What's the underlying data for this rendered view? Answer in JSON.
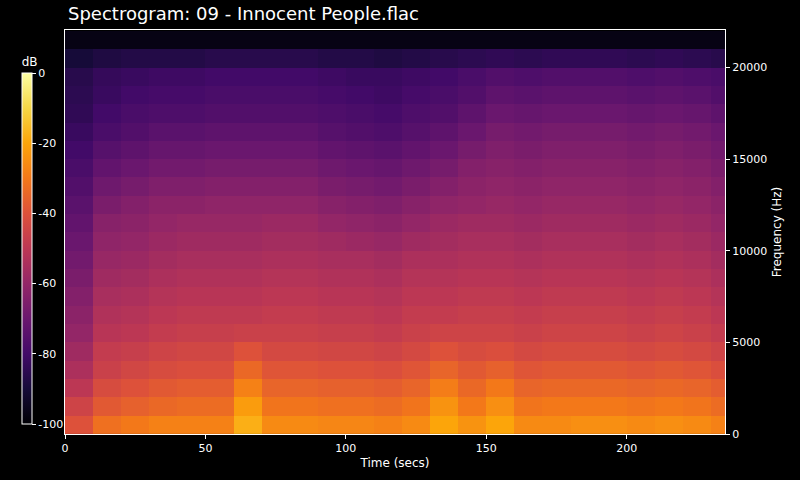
{
  "chart_data": {
    "type": "heatmap",
    "title": "Spectrogram: 09 - Innocent People.flac",
    "x_label": "Time (secs)",
    "y_label": "Frequency (Hz)",
    "z_label": "dB",
    "x": [
      5,
      15,
      25,
      35,
      45,
      55,
      65,
      75,
      85,
      95,
      105,
      115,
      125,
      135,
      145,
      155,
      165,
      175,
      185,
      195,
      205,
      215,
      225,
      235
    ],
    "y": [
      500,
      1500,
      2500,
      3500,
      4500,
      5500,
      6500,
      7500,
      8500,
      9500,
      10500,
      11500,
      12500,
      13500,
      14500,
      15500,
      16500,
      17500,
      18500,
      19500,
      20500,
      21500
    ],
    "z": [
      [
        -40,
        -32,
        -30,
        -28,
        -28,
        -28,
        -18,
        -26,
        -26,
        -27,
        -27,
        -28,
        -26,
        -20,
        -24,
        -20,
        -26,
        -26,
        -25,
        -25,
        -26,
        -25,
        -26,
        -28
      ],
      [
        -45,
        -38,
        -36,
        -34,
        -33,
        -33,
        -22,
        -31,
        -31,
        -32,
        -32,
        -33,
        -31,
        -24,
        -30,
        -25,
        -31,
        -30,
        -30,
        -30,
        -31,
        -30,
        -31,
        -33
      ],
      [
        -50,
        -42,
        -40,
        -38,
        -37,
        -37,
        -28,
        -35,
        -35,
        -36,
        -36,
        -37,
        -35,
        -29,
        -34,
        -30,
        -35,
        -34,
        -34,
        -34,
        -35,
        -34,
        -35,
        -37
      ],
      [
        -54,
        -46,
        -44,
        -42,
        -41,
        -41,
        -34,
        -39,
        -39,
        -40,
        -40,
        -41,
        -39,
        -35,
        -38,
        -36,
        -39,
        -38,
        -38,
        -38,
        -39,
        -38,
        -39,
        -41
      ],
      [
        -57,
        -48,
        -47,
        -45,
        -44,
        -44,
        -40,
        -43,
        -43,
        -44,
        -44,
        -45,
        -43,
        -40,
        -42,
        -41,
        -43,
        -42,
        -42,
        -42,
        -43,
        -42,
        -43,
        -45
      ],
      [
        -60,
        -51,
        -50,
        -48,
        -47,
        -47,
        -46,
        -46,
        -46,
        -47,
        -47,
        -48,
        -46,
        -45,
        -45,
        -45,
        -46,
        -45,
        -45,
        -45,
        -46,
        -45,
        -46,
        -48
      ],
      [
        -62,
        -53,
        -52,
        -50,
        -49,
        -49,
        -49,
        -48,
        -48,
        -49,
        -49,
        -50,
        -48,
        -48,
        -47,
        -47,
        -48,
        -47,
        -47,
        -47,
        -48,
        -47,
        -48,
        -50
      ],
      [
        -64,
        -55,
        -54,
        -52,
        -51,
        -51,
        -51,
        -50,
        -50,
        -51,
        -51,
        -52,
        -50,
        -50,
        -49,
        -49,
        -50,
        -49,
        -49,
        -49,
        -50,
        -49,
        -50,
        -52
      ],
      [
        -66,
        -57,
        -56,
        -54,
        -53,
        -53,
        -53,
        -52,
        -52,
        -53,
        -53,
        -54,
        -52,
        -52,
        -51,
        -51,
        -52,
        -51,
        -51,
        -51,
        -52,
        -51,
        -52,
        -54
      ],
      [
        -68,
        -59,
        -58,
        -56,
        -55,
        -55,
        -55,
        -54,
        -54,
        -55,
        -55,
        -56,
        -54,
        -54,
        -53,
        -53,
        -54,
        -53,
        -53,
        -53,
        -54,
        -53,
        -54,
        -56
      ],
      [
        -70,
        -61,
        -60,
        -58,
        -57,
        -57,
        -57,
        -56,
        -56,
        -57,
        -58,
        -59,
        -57,
        -56,
        -55,
        -55,
        -56,
        -55,
        -55,
        -55,
        -56,
        -55,
        -56,
        -58
      ],
      [
        -72,
        -63,
        -62,
        -60,
        -59,
        -59,
        -59,
        -58,
        -58,
        -60,
        -61,
        -62,
        -60,
        -58,
        -57,
        -57,
        -58,
        -57,
        -57,
        -57,
        -58,
        -57,
        -58,
        -60
      ],
      [
        -74,
        -66,
        -64,
        -62,
        -62,
        -61,
        -61,
        -61,
        -61,
        -63,
        -64,
        -65,
        -63,
        -61,
        -60,
        -59,
        -60,
        -59,
        -59,
        -59,
        -60,
        -59,
        -60,
        -62
      ],
      [
        -76,
        -69,
        -67,
        -65,
        -65,
        -64,
        -64,
        -64,
        -64,
        -66,
        -67,
        -68,
        -66,
        -64,
        -62,
        -61,
        -62,
        -61,
        -61,
        -61,
        -62,
        -61,
        -62,
        -64
      ],
      [
        -78,
        -72,
        -70,
        -68,
        -68,
        -67,
        -67,
        -67,
        -67,
        -69,
        -70,
        -71,
        -69,
        -67,
        -64,
        -63,
        -64,
        -63,
        -63,
        -63,
        -64,
        -63,
        -64,
        -66
      ],
      [
        -80,
        -75,
        -73,
        -71,
        -71,
        -70,
        -70,
        -70,
        -70,
        -72,
        -73,
        -74,
        -72,
        -70,
        -67,
        -65,
        -66,
        -65,
        -65,
        -65,
        -66,
        -65,
        -66,
        -68
      ],
      [
        -82,
        -78,
        -76,
        -74,
        -74,
        -73,
        -73,
        -73,
        -73,
        -75,
        -76,
        -77,
        -75,
        -73,
        -70,
        -67,
        -68,
        -67,
        -67,
        -67,
        -68,
        -67,
        -68,
        -70
      ],
      [
        -84,
        -80,
        -78,
        -77,
        -77,
        -76,
        -76,
        -76,
        -76,
        -77,
        -78,
        -79,
        -77,
        -76,
        -73,
        -70,
        -71,
        -70,
        -70,
        -70,
        -71,
        -70,
        -71,
        -73
      ],
      [
        -85,
        -82,
        -80,
        -79,
        -79,
        -78,
        -78,
        -78,
        -78,
        -79,
        -80,
        -81,
        -79,
        -78,
        -76,
        -73,
        -74,
        -73,
        -73,
        -73,
        -74,
        -73,
        -74,
        -76
      ],
      [
        -86,
        -83,
        -82,
        -81,
        -81,
        -80,
        -80,
        -80,
        -80,
        -81,
        -82,
        -82,
        -81,
        -80,
        -78,
        -76,
        -77,
        -76,
        -76,
        -76,
        -77,
        -76,
        -77,
        -78
      ],
      [
        -90,
        -88,
        -87,
        -87,
        -87,
        -86,
        -86,
        -86,
        -86,
        -87,
        -87,
        -88,
        -87,
        -86,
        -85,
        -84,
        -85,
        -84,
        -84,
        -84,
        -85,
        -84,
        -85,
        -86
      ],
      [
        -97,
        -97,
        -97,
        -97,
        -97,
        -97,
        -97,
        -97,
        -97,
        -97,
        -97,
        -97,
        -97,
        -97,
        -97,
        -97,
        -97,
        -97,
        -97,
        -97,
        -97,
        -97,
        -97,
        -97
      ]
    ],
    "xlim": [
      0,
      235
    ],
    "ylim": [
      0,
      22050
    ],
    "xticks": [
      0,
      50,
      100,
      150,
      200
    ],
    "yticks": [
      0,
      5000,
      10000,
      15000,
      20000
    ],
    "zlim": [
      -100,
      0
    ],
    "zticks": [
      0,
      -20,
      -40,
      -60,
      -80,
      -100
    ]
  }
}
